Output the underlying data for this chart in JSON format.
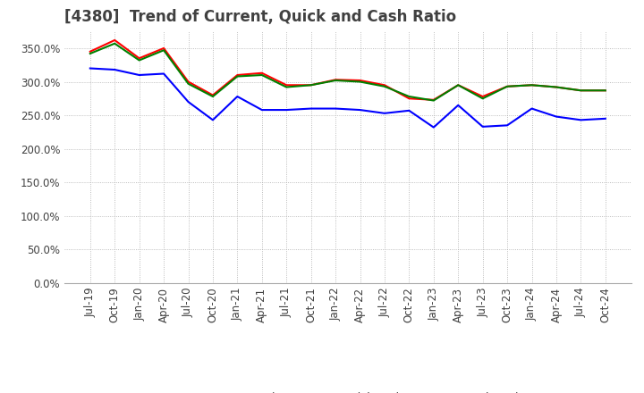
{
  "title": "[4380]  Trend of Current, Quick and Cash Ratio",
  "x_labels": [
    "Jul-19",
    "Oct-19",
    "Jan-20",
    "Apr-20",
    "Jul-20",
    "Oct-20",
    "Jan-21",
    "Apr-21",
    "Jul-21",
    "Oct-21",
    "Jan-22",
    "Apr-22",
    "Jul-22",
    "Oct-22",
    "Jan-23",
    "Apr-23",
    "Jul-23",
    "Oct-23",
    "Jan-24",
    "Apr-24",
    "Jul-24",
    "Oct-24"
  ],
  "current_ratio": [
    345,
    362,
    335,
    350,
    300,
    280,
    310,
    313,
    295,
    295,
    303,
    302,
    295,
    275,
    273,
    295,
    278,
    293,
    295,
    292,
    287,
    287
  ],
  "quick_ratio": [
    342,
    357,
    332,
    347,
    297,
    278,
    308,
    310,
    292,
    295,
    302,
    300,
    293,
    278,
    272,
    295,
    275,
    293,
    295,
    292,
    287,
    287
  ],
  "cash_ratio": [
    320,
    318,
    310,
    312,
    270,
    243,
    278,
    258,
    258,
    260,
    260,
    258,
    253,
    257,
    232,
    265,
    233,
    235,
    260,
    248,
    243,
    245
  ],
  "ylim": [
    0,
    375
  ],
  "yticks": [
    0,
    50,
    100,
    150,
    200,
    250,
    300,
    350
  ],
  "current_color": "#FF0000",
  "quick_color": "#008000",
  "cash_color": "#0000FF",
  "bg_color": "#FFFFFF",
  "grid_color": "#AAAAAA",
  "title_color": "#404040",
  "title_fontsize": 12
}
